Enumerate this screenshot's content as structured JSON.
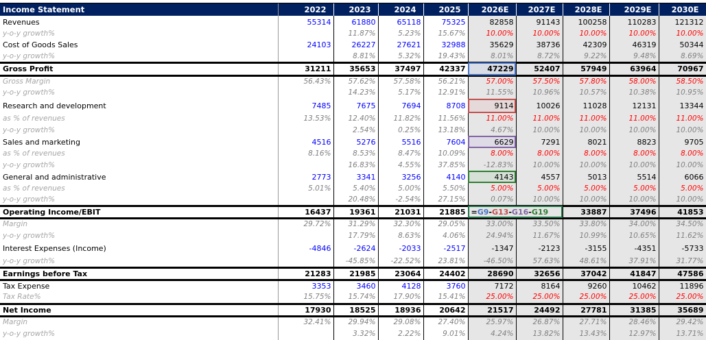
{
  "header": {
    "title": "Income Statement",
    "years": [
      "2022",
      "2023",
      "2024",
      "2025",
      "2026E",
      "2027E",
      "2028E",
      "2029E",
      "2030E"
    ]
  },
  "colors": {
    "header_bg": "#002060",
    "historical_input": "#0000ff",
    "forecast_assumption": "#ff0000",
    "forecast_bg": "#e7e6e6"
  },
  "rows": [
    {
      "label": "Revenues",
      "type": "main",
      "values": [
        "55314",
        "61880",
        "65118",
        "75325",
        "82858",
        "91143",
        "100258",
        "110283",
        "121312"
      ]
    },
    {
      "label": "y-o-y growth%",
      "type": "pct",
      "red_forecast": true,
      "values": [
        "",
        "11.87%",
        "5.23%",
        "15.67%",
        "10.00%",
        "10.00%",
        "10.00%",
        "10.00%",
        "10.00%"
      ]
    },
    {
      "label": "Cost of Goods Sales",
      "type": "main",
      "values": [
        "24103",
        "26227",
        "27621",
        "32988",
        "35629",
        "38736",
        "42309",
        "46319",
        "50344"
      ]
    },
    {
      "label": "y-o-y growth%",
      "type": "pct",
      "values": [
        "",
        "8.81%",
        "5.32%",
        "19.43%",
        "8.01%",
        "8.72%",
        "9.22%",
        "9.48%",
        "8.69%"
      ]
    },
    {
      "label": "Gross Profit",
      "type": "bold",
      "sel": "blue",
      "values": [
        "31211",
        "35653",
        "37497",
        "42337",
        "47229",
        "52407",
        "57949",
        "63964",
        "70967"
      ]
    },
    {
      "label": "Gross Margin",
      "type": "pct",
      "red_forecast": true,
      "values": [
        "56.43%",
        "57.62%",
        "57.58%",
        "56.21%",
        "57.00%",
        "57.50%",
        "57.80%",
        "58.00%",
        "58.50%"
      ]
    },
    {
      "label": "y-o-y growth%",
      "type": "pct",
      "values": [
        "",
        "14.23%",
        "5.17%",
        "12.91%",
        "11.55%",
        "10.96%",
        "10.57%",
        "10.38%",
        "10.95%"
      ]
    },
    {
      "label": "Research and development",
      "type": "main",
      "sel": "red",
      "values": [
        "7485",
        "7675",
        "7694",
        "8708",
        "9114",
        "10026",
        "11028",
        "12131",
        "13344"
      ]
    },
    {
      "label": "as % of revenues",
      "type": "pct",
      "red_forecast": true,
      "values": [
        "13.53%",
        "12.40%",
        "11.82%",
        "11.56%",
        "11.00%",
        "11.00%",
        "11.00%",
        "11.00%",
        "11.00%"
      ]
    },
    {
      "label": "y-o-y growth%",
      "type": "pct",
      "values": [
        "",
        "2.54%",
        "0.25%",
        "13.18%",
        "4.67%",
        "10.00%",
        "10.00%",
        "10.00%",
        "10.00%"
      ]
    },
    {
      "label": "Sales and marketing",
      "type": "main",
      "sel": "purple",
      "values": [
        "4516",
        "5276",
        "5516",
        "7604",
        "6629",
        "7291",
        "8021",
        "8823",
        "9705"
      ]
    },
    {
      "label": "as % of revenues",
      "type": "pct",
      "red_forecast": true,
      "values": [
        "8.16%",
        "8.53%",
        "8.47%",
        "10.09%",
        "8.00%",
        "8.00%",
        "8.00%",
        "8.00%",
        "8.00%"
      ]
    },
    {
      "label": "y-o-y growth%",
      "type": "pct",
      "values": [
        "",
        "16.83%",
        "4.55%",
        "37.85%",
        "-12.83%",
        "10.00%",
        "10.00%",
        "10.00%",
        "10.00%"
      ]
    },
    {
      "label": "General and administrative",
      "type": "main",
      "sel": "green",
      "values": [
        "2773",
        "3341",
        "3256",
        "4140",
        "4143",
        "4557",
        "5013",
        "5514",
        "6066"
      ]
    },
    {
      "label": "as % of revenues",
      "type": "pct",
      "red_forecast": true,
      "values": [
        "5.01%",
        "5.40%",
        "5.00%",
        "5.50%",
        "5.00%",
        "5.00%",
        "5.00%",
        "5.00%",
        "5.00%"
      ]
    },
    {
      "label": "y-o-y growth%",
      "type": "pct",
      "values": [
        "",
        "20.48%",
        "-2.54%",
        "27.15%",
        "0.07%",
        "10.00%",
        "10.00%",
        "10.00%",
        "10.00%"
      ]
    },
    {
      "label": "Operating Income/EBIT",
      "type": "bold",
      "formula": [
        {
          "t": "=",
          "c": "#000000"
        },
        {
          "t": "G9",
          "c": "#4472c4"
        },
        {
          "t": "-",
          "c": "#000000"
        },
        {
          "t": "G13",
          "c": "#c0504d"
        },
        {
          "t": "-",
          "c": "#000000"
        },
        {
          "t": "G16",
          "c": "#8064a2"
        },
        {
          "t": "-",
          "c": "#000000"
        },
        {
          "t": "G19",
          "c": "#2e7d32"
        }
      ],
      "values": [
        "16437",
        "19361",
        "21031",
        "21885",
        "",
        "",
        "33887",
        "37496",
        "41853"
      ]
    },
    {
      "label": "Margin",
      "type": "pct",
      "values": [
        "29.72%",
        "31.29%",
        "32.30%",
        "29.05%",
        "33.00%",
        "33.50%",
        "33.80%",
        "34.00%",
        "34.50%"
      ]
    },
    {
      "label": "y-o-y growth%",
      "type": "pct",
      "values": [
        "",
        "17.79%",
        "8.63%",
        "4.06%",
        "24.94%",
        "11.67%",
        "10.99%",
        "10.65%",
        "11.62%"
      ]
    },
    {
      "label": "Interest Expenses (Income)",
      "type": "main",
      "values": [
        "-4846",
        "-2624",
        "-2033",
        "-2517",
        "-1347",
        "-2123",
        "-3155",
        "-4351",
        "-5733"
      ]
    },
    {
      "label": "y-o-y growth%",
      "type": "pct",
      "values": [
        "",
        "-45.85%",
        "-22.52%",
        "23.81%",
        "-46.50%",
        "57.63%",
        "48.61%",
        "37.91%",
        "31.77%"
      ]
    },
    {
      "label": "Earnings before Tax",
      "type": "bold",
      "values": [
        "21283",
        "21985",
        "23064",
        "24402",
        "28690",
        "32656",
        "37042",
        "41847",
        "47586"
      ]
    },
    {
      "label": "Tax Expense",
      "type": "main",
      "values": [
        "3353",
        "3460",
        "4128",
        "3760",
        "7172",
        "8164",
        "9260",
        "10462",
        "11896"
      ]
    },
    {
      "label": "Tax Rate%",
      "type": "pct",
      "red_forecast": true,
      "values": [
        "15.75%",
        "15.74%",
        "17.90%",
        "15.41%",
        "25.00%",
        "25.00%",
        "25.00%",
        "25.00%",
        "25.00%"
      ]
    },
    {
      "label": "Net Income",
      "type": "bold",
      "values": [
        "17930",
        "18525",
        "18936",
        "20642",
        "21517",
        "24492",
        "27781",
        "31385",
        "35689"
      ]
    },
    {
      "label": "Margin",
      "type": "pct",
      "values": [
        "32.41%",
        "29.94%",
        "29.08%",
        "27.40%",
        "25.97%",
        "26.87%",
        "27.71%",
        "28.46%",
        "29.42%"
      ]
    },
    {
      "label": "y-o-y growth%",
      "type": "pct",
      "values": [
        "",
        "3.32%",
        "2.22%",
        "9.01%",
        "4.24%",
        "13.82%",
        "13.43%",
        "12.97%",
        "13.71%"
      ]
    }
  ]
}
